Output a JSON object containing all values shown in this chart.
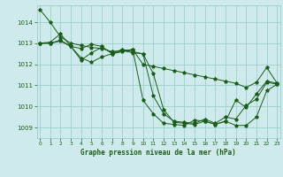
{
  "title": "Graphe pression niveau de la mer (hPa)",
  "background_color": "#ceeaea",
  "grid_color": "#9ecece",
  "line_color": "#1a5c1a",
  "xlim": [
    -0.3,
    23.3
  ],
  "ylim": [
    1008.5,
    1014.8
  ],
  "xticks": [
    0,
    1,
    2,
    3,
    4,
    5,
    6,
    7,
    8,
    9,
    10,
    11,
    12,
    13,
    14,
    15,
    16,
    17,
    18,
    19,
    20,
    21,
    22,
    23
  ],
  "yticks": [
    1009,
    1010,
    1011,
    1012,
    1013,
    1014
  ],
  "series": [
    [
      1014.6,
      1014.0,
      1013.3,
      1013.0,
      1012.9,
      1012.8,
      1012.75,
      1012.6,
      1012.65,
      1012.7,
      1012.0,
      1011.9,
      1011.8,
      1011.7,
      1011.6,
      1011.5,
      1011.4,
      1011.3,
      1011.2,
      1011.1,
      1010.9,
      1011.15,
      1011.85,
      1011.1
    ],
    [
      1013.0,
      1013.05,
      1013.45,
      1012.85,
      1012.2,
      1012.55,
      1012.8,
      1012.55,
      1012.7,
      1012.6,
      1012.5,
      1010.5,
      1009.65,
      1009.3,
      1009.25,
      1009.2,
      1009.4,
      1009.2,
      1009.5,
      1009.4,
      1010.05,
      1010.35,
      1011.15,
      1011.05
    ],
    [
      1013.0,
      1013.0,
      1013.1,
      1012.85,
      1012.75,
      1012.95,
      1012.85,
      1012.5,
      1012.65,
      1012.55,
      1012.5,
      1011.55,
      1009.85,
      1009.25,
      1009.2,
      1009.15,
      1009.3,
      1009.15,
      1009.3,
      1010.3,
      1009.95,
      1010.6,
      1011.2,
      1011.1
    ],
    [
      1013.0,
      1013.0,
      1013.15,
      1012.85,
      1012.3,
      1012.1,
      1012.35,
      1012.5,
      1012.6,
      1012.7,
      1010.3,
      1009.65,
      1009.2,
      1009.15,
      1009.1,
      1009.35,
      1009.3,
      1009.15,
      1009.3,
      1009.1,
      1009.1,
      1009.5,
      1010.75,
      1011.05
    ]
  ]
}
